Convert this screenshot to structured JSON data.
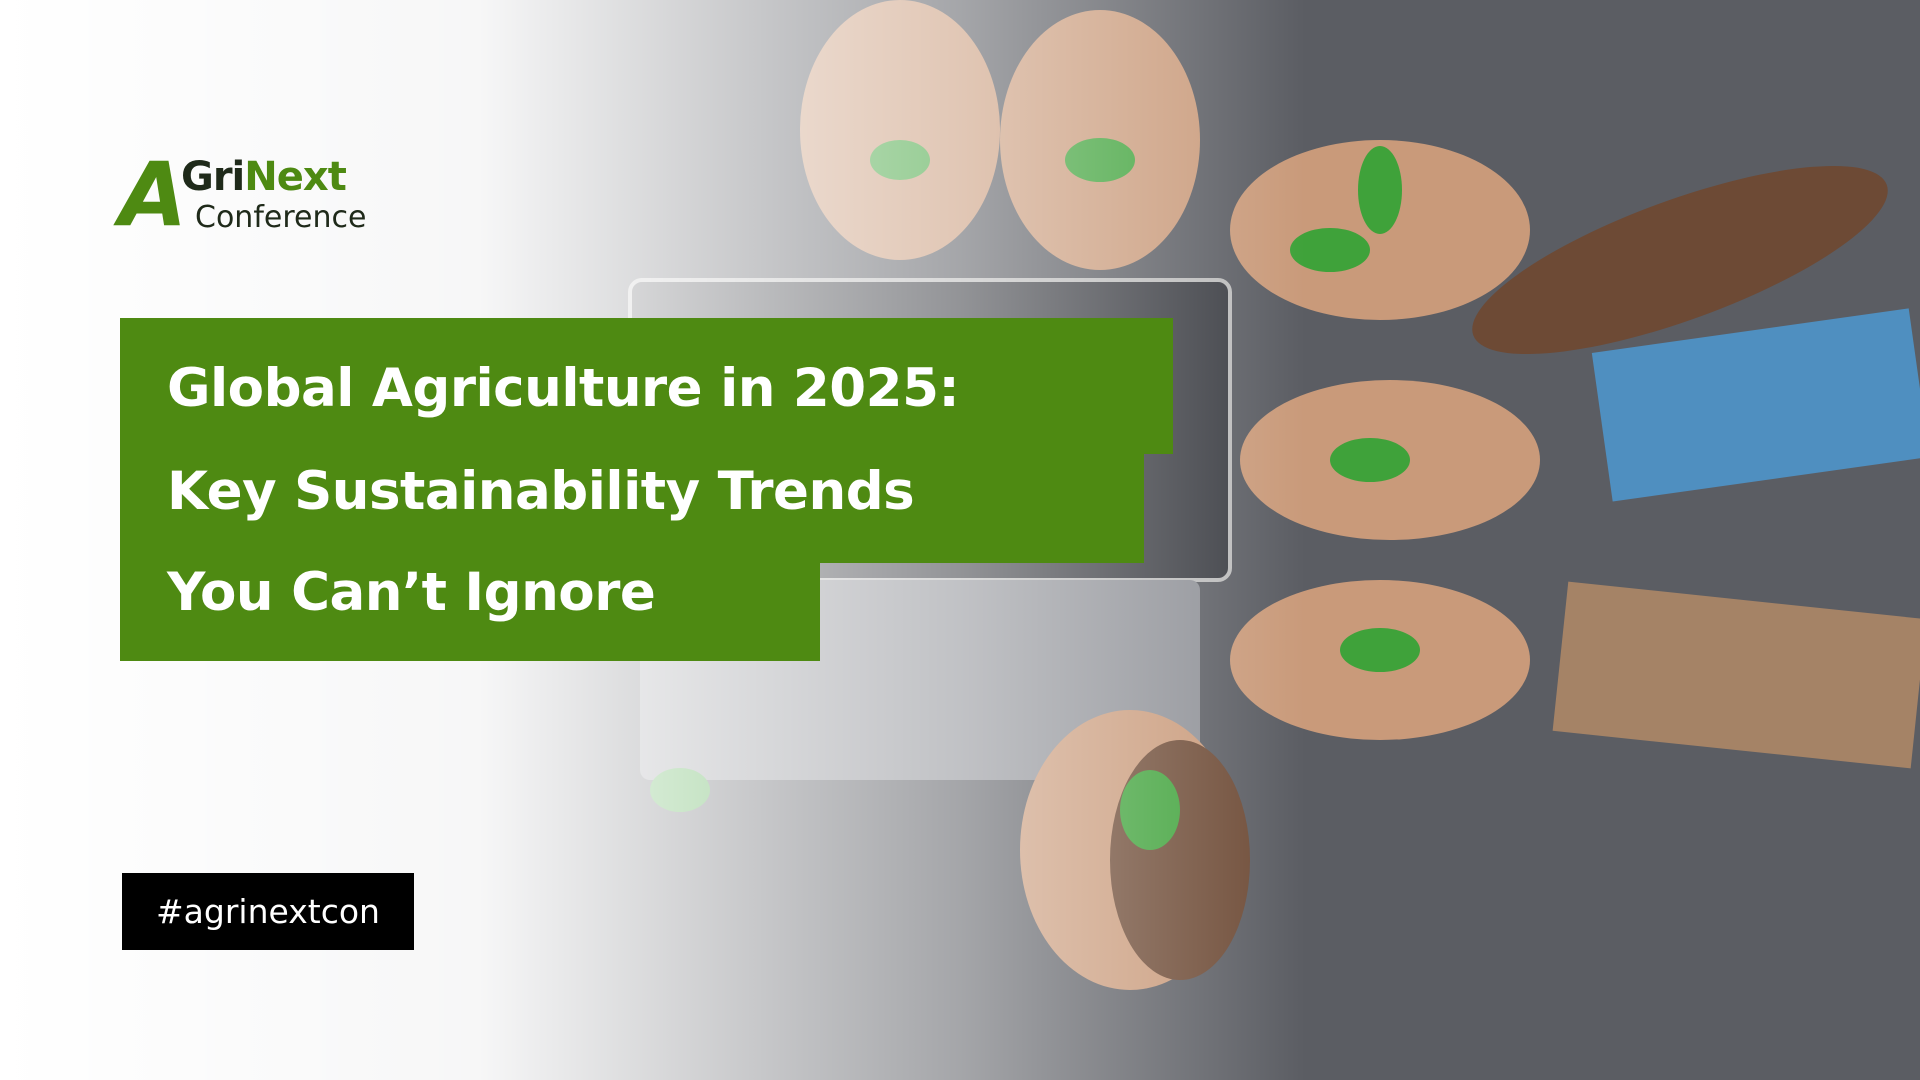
{
  "logo": {
    "mark": "A",
    "prefix": "Gri",
    "accent": "Next",
    "subtitle": "Conference"
  },
  "headline": {
    "lines": [
      "Global Agriculture in 2025:",
      "Key Sustainability Trends",
      "You Can’t Ignore"
    ]
  },
  "hashtag": "#agrinextcon"
}
